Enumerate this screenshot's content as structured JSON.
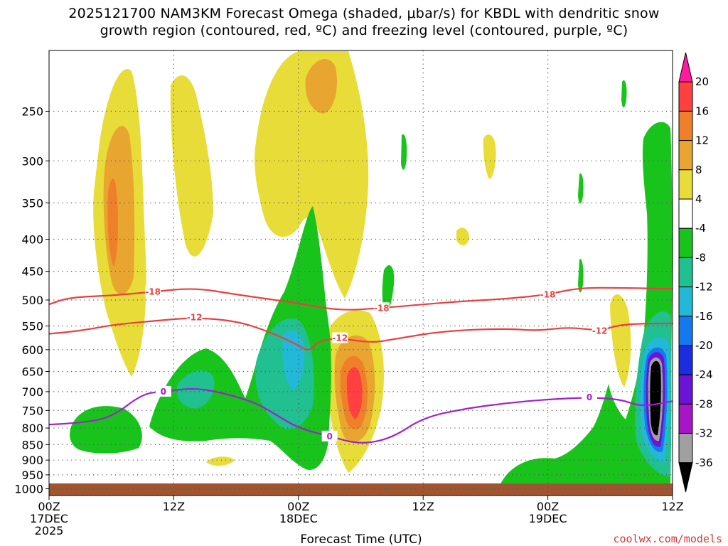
{
  "title": {
    "line1": "2025121700 NAM3KM Forecast Omega (shaded, μbar/s) for KBDL with dendritic snow",
    "line2": "growth region (contoured, red, ºC) and freezing level (contoured, purple, ºC)"
  },
  "credit": "coolwx.com/models",
  "chart_data": {
    "type": "contour",
    "xlabel": "Forecast Time (UTC)",
    "x_hours_range": [
      0,
      60
    ],
    "x_ticks": [
      {
        "h": 0,
        "lines": [
          "00Z",
          "17DEC",
          "2025"
        ]
      },
      {
        "h": 12,
        "lines": [
          "12Z"
        ]
      },
      {
        "h": 24,
        "lines": [
          "00Z",
          "18DEC"
        ]
      },
      {
        "h": 36,
        "lines": [
          "12Z"
        ]
      },
      {
        "h": 48,
        "lines": [
          "00Z",
          "19DEC"
        ]
      },
      {
        "h": 60,
        "lines": [
          "12Z"
        ]
      }
    ],
    "y_scale": "log-pressure",
    "y_range_hpa": [
      1025,
      200
    ],
    "y_ticks": [
      250,
      300,
      350,
      400,
      450,
      500,
      550,
      600,
      650,
      700,
      750,
      800,
      850,
      900,
      950,
      1000
    ],
    "grid": "dotted",
    "colorbar": {
      "levels": [
        20,
        16,
        12,
        8,
        4,
        -4,
        -8,
        -12,
        -16,
        -20,
        -24,
        -28,
        -32,
        -36
      ],
      "colors": [
        "#ff1aa0",
        "#ff4040",
        "#f07f2a",
        "#e8a530",
        "#e8dc38",
        "#ffffff",
        "#18c41c",
        "#20c090",
        "#22b8d8",
        "#1478f0",
        "#1c2ce0",
        "#6a14d8",
        "#a814c8",
        "#a0a0a0",
        "#000000"
      ]
    },
    "dgz_contours": [
      {
        "label": "-18",
        "color": "#e84040",
        "points": [
          [
            0,
            508
          ],
          [
            2,
            495
          ],
          [
            6,
            492
          ],
          [
            10,
            485
          ],
          [
            14,
            478
          ],
          [
            18,
            490
          ],
          [
            24,
            506
          ],
          [
            28,
            520
          ],
          [
            32,
            515
          ],
          [
            36,
            508
          ],
          [
            40,
            502
          ],
          [
            44,
            498
          ],
          [
            48,
            490
          ],
          [
            51,
            478
          ],
          [
            55,
            478
          ],
          [
            60,
            480
          ]
        ]
      },
      {
        "label": "-12",
        "color": "#e84040",
        "points": [
          [
            0,
            566
          ],
          [
            3,
            560
          ],
          [
            6,
            548
          ],
          [
            10,
            540
          ],
          [
            14,
            533
          ],
          [
            18,
            540
          ],
          [
            21,
            560
          ],
          [
            24,
            590
          ],
          [
            25,
            605
          ],
          [
            26,
            580
          ],
          [
            28,
            575
          ],
          [
            31,
            585
          ],
          [
            33,
            578
          ],
          [
            38,
            560
          ],
          [
            44,
            555
          ],
          [
            47,
            560
          ],
          [
            50,
            552
          ],
          [
            53,
            560
          ],
          [
            55,
            547
          ],
          [
            58,
            545
          ],
          [
            60,
            545
          ]
        ]
      },
      {
        "label": "0",
        "color": "#a020d0",
        "points": [
          [
            0,
            790
          ],
          [
            3,
            785
          ],
          [
            6,
            770
          ],
          [
            9,
            705
          ],
          [
            11,
            700
          ],
          [
            14,
            690
          ],
          [
            17,
            705
          ],
          [
            20,
            730
          ],
          [
            22,
            765
          ],
          [
            24,
            800
          ],
          [
            27,
            825
          ],
          [
            30,
            850
          ],
          [
            33,
            830
          ],
          [
            36,
            770
          ],
          [
            40,
            745
          ],
          [
            44,
            730
          ],
          [
            48,
            720
          ],
          [
            52,
            715
          ],
          [
            55,
            720
          ],
          [
            57,
            740
          ],
          [
            60,
            725
          ]
        ]
      }
    ],
    "omega_features": [
      {
        "label": "20",
        "note": "max ascent near hour 29 at 680 hPa"
      },
      {
        "label": "-36",
        "note": "min near hour 58 at 720 hPa"
      }
    ]
  }
}
